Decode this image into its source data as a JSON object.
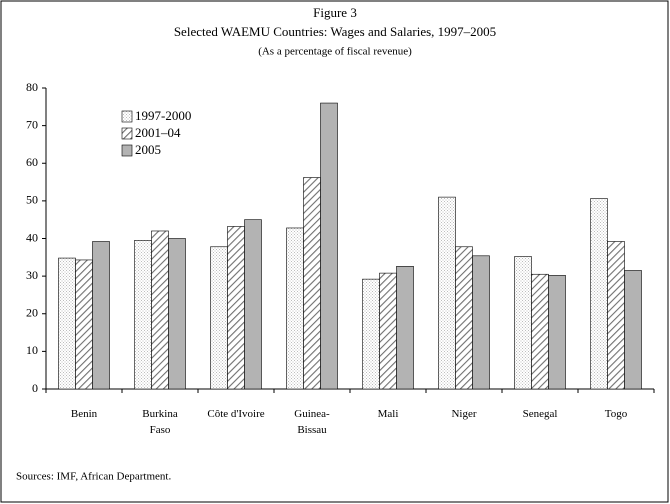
{
  "chart_data": {
    "type": "bar",
    "title": "Figure 3",
    "subtitle": "Selected WAEMU Countries: Wages and Salaries, 1997–2005",
    "note": "(As a percentage of fiscal revenue)",
    "source": "Sources: IMF, African Department.",
    "categories": [
      "Benin",
      "Burkina\nFaso",
      "Côte d'Ivoire",
      "Guinea-\nBissau",
      "Mali",
      "Niger",
      "Senegal",
      "Togo"
    ],
    "series": [
      {
        "name": "1997-2000",
        "color": "#bdbdbd",
        "pattern": "dots",
        "values": [
          34.8,
          39.5,
          37.8,
          42.8,
          29.2,
          51,
          35.2,
          50.6
        ]
      },
      {
        "name": "2001–04",
        "color": "#707070",
        "pattern": "hatch",
        "values": [
          34.3,
          42,
          43.2,
          56.2,
          30.8,
          37.8,
          30.5,
          39.2
        ]
      },
      {
        "name": "2005",
        "color": "#b3b3b3",
        "pattern": "solid",
        "values": [
          39.2,
          40,
          45,
          76,
          32.6,
          35.4,
          30.2,
          31.5
        ]
      }
    ],
    "ylim": [
      0,
      80
    ],
    "yticks": [
      0,
      10,
      20,
      30,
      40,
      50,
      60,
      70,
      80
    ],
    "legend": "upper left",
    "grid": false
  }
}
